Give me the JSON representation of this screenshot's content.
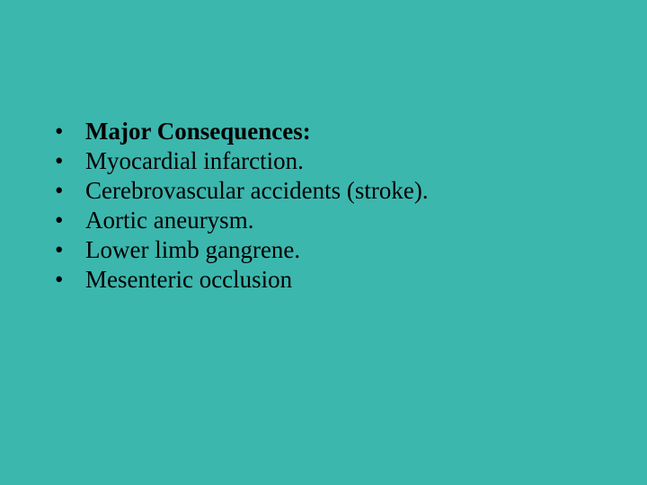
{
  "slide": {
    "background_color": "#3cb7ae",
    "text_color": "#000000",
    "font_family": "Times New Roman",
    "font_size_pt": 20,
    "bullet_char": "•",
    "items": [
      {
        "text": "Major Consequences:",
        "bold": true
      },
      {
        "text": "Myocardial infarction.",
        "bold": false
      },
      {
        "text": "Cerebrovascular accidents (stroke).",
        "bold": false
      },
      {
        "text": "Aortic aneurysm.",
        "bold": false
      },
      {
        "text": "Lower limb gangrene.",
        "bold": false
      },
      {
        "text": "Mesenteric occlusion",
        "bold": false
      }
    ]
  }
}
